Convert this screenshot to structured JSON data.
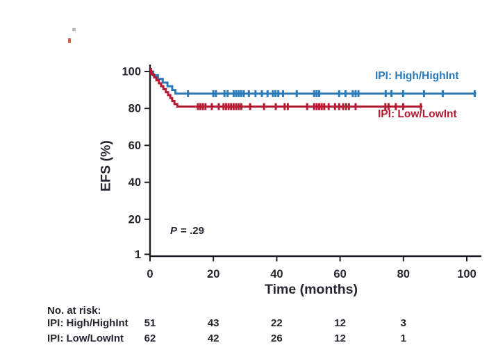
{
  "figure": {
    "p_value": {
      "italic": "P",
      "rest": " = .29"
    }
  },
  "chart_data": {
    "type": "line",
    "subtype": "kaplan-meier-step-curve",
    "title": "",
    "xlabel": "Time (months)",
    "ylabel": "EFS (%)",
    "xticks": [
      0,
      20,
      40,
      60,
      80,
      100
    ],
    "yticks": [
      100,
      80,
      60,
      40,
      20,
      1
    ],
    "xlim": [
      0,
      104
    ],
    "ylim": [
      0,
      100
    ],
    "grid": false,
    "annotation": "P = .29",
    "colors": {
      "axis": "#1c1c22",
      "text": "#25262e",
      "series_high": "#2a79b8",
      "series_low": "#b41a31"
    },
    "series": [
      {
        "name": "IPI: High/HighInt",
        "color": "#2a79b8",
        "plateau": 88,
        "steps": [
          [
            0,
            100
          ],
          [
            1,
            98
          ],
          [
            2.5,
            96
          ],
          [
            4,
            94
          ],
          [
            5.5,
            92
          ],
          [
            7,
            90
          ],
          [
            8,
            88
          ],
          [
            103,
            88
          ]
        ],
        "censor_times": [
          12,
          20,
          20.8,
          23.5,
          24.5,
          26.4,
          27.2,
          28,
          28.8,
          29.6,
          31.2,
          33.3,
          35.3,
          37.1,
          38.8,
          39.6,
          40.5,
          42,
          46.3,
          51.8,
          52.6,
          53.4,
          59.7,
          61.7,
          64,
          64.9,
          65.8,
          74.4,
          76.2,
          79.9,
          86.5,
          92.4,
          102.5
        ]
      },
      {
        "name": "IPI: Low/LowInt",
        "color": "#b41a31",
        "plateau": 81,
        "steps": [
          [
            0,
            100
          ],
          [
            0.6,
            98.4
          ],
          [
            1.3,
            96.8
          ],
          [
            2,
            95.2
          ],
          [
            2.8,
            93.6
          ],
          [
            3.5,
            92
          ],
          [
            4.2,
            90.4
          ],
          [
            5,
            88.8
          ],
          [
            5.7,
            87.2
          ],
          [
            6.4,
            85.6
          ],
          [
            7,
            84
          ],
          [
            7.7,
            82.4
          ],
          [
            8.6,
            81
          ],
          [
            86,
            81
          ]
        ],
        "censor_times": [
          0.3,
          15.1,
          15.9,
          16.7,
          17.5,
          19.5,
          21.7,
          23.2,
          24,
          24.8,
          25.6,
          26.4,
          27.2,
          28,
          28.8,
          31.6,
          36,
          39.7,
          42.5,
          43.5,
          49.6,
          51.8,
          52.6,
          53.4,
          54.2,
          55,
          56.4,
          58.4,
          59.7,
          61,
          61.9,
          62.8,
          64.9,
          74.3,
          75.3,
          77.6,
          79.9,
          85.5
        ]
      }
    ],
    "risk_table": {
      "title": "No. at risk:",
      "times": [
        0,
        20,
        40,
        60,
        80
      ],
      "rows": [
        {
          "label": "IPI: High/HighInt",
          "values": [
            "51",
            "43",
            "22",
            "12",
            "3"
          ]
        },
        {
          "label": "IPI: Low/LowInt",
          "values": [
            "62",
            "42",
            "26",
            "12",
            "1"
          ]
        }
      ]
    }
  }
}
